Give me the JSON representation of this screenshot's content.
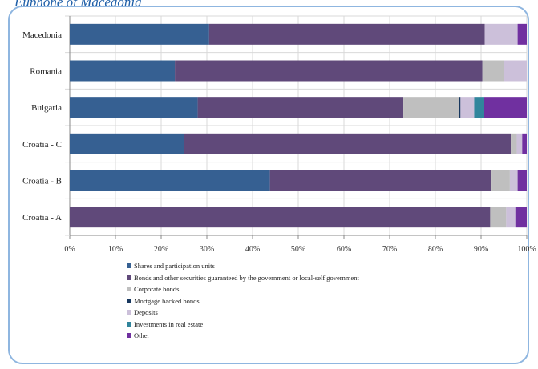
{
  "header": {
    "caption": "Euphone of Macedonia"
  },
  "chart_data": {
    "type": "bar",
    "orientation": "horizontal",
    "stacked": true,
    "percent": true,
    "categories": [
      "Macedonia",
      "Romania",
      "Bulgaria",
      "Croatia - C",
      "Croatia - B",
      "Croatia - A"
    ],
    "series": [
      {
        "name": "Shares and participation units",
        "color": "#366092",
        "values": [
          30.5,
          23,
          28,
          25,
          43.8,
          0
        ]
      },
      {
        "name": "Bonds and other securities guaranteed by the government or local-self government",
        "color": "#60497a",
        "values": [
          60.3,
          67.3,
          45,
          71.5,
          48.5,
          92
        ]
      },
      {
        "name": "Corporate bonds",
        "color": "#bfbfbf",
        "values": [
          0,
          4.7,
          12.2,
          1.3,
          4,
          3.5
        ]
      },
      {
        "name": "Mortgage backed bonds",
        "color": "#17375e",
        "values": [
          0,
          0,
          0.3,
          0,
          0,
          0
        ]
      },
      {
        "name": "Deposits",
        "color": "#ccc0da",
        "values": [
          7.2,
          5,
          3,
          1.2,
          1.7,
          2
        ]
      },
      {
        "name": "Investments in real estate",
        "color": "#31859c",
        "values": [
          0,
          0,
          2.2,
          0,
          0,
          0
        ]
      },
      {
        "name": "Other",
        "color": "#7030a0",
        "values": [
          2,
          0,
          9.3,
          1,
          2,
          2.5
        ]
      }
    ],
    "xticks": [
      "0%",
      "10%",
      "20%",
      "30%",
      "40%",
      "50%",
      "60%",
      "70%",
      "80%",
      "90%",
      "100%"
    ],
    "xlim": [
      0,
      100
    ],
    "grid": "vertical",
    "legend_position": "bottom"
  }
}
